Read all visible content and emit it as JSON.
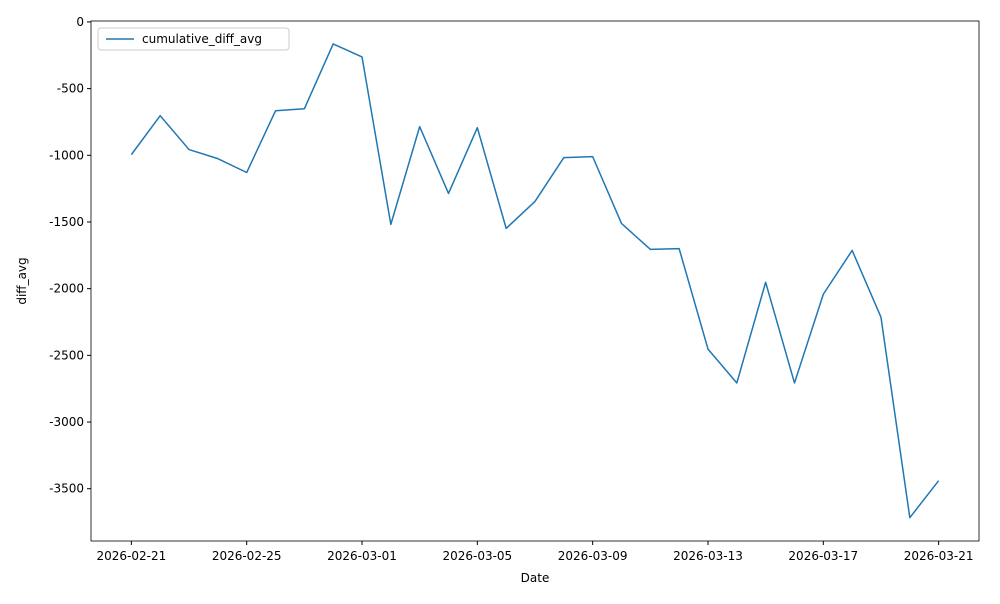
{
  "chart_data": {
    "type": "line",
    "xlabel": "Date",
    "ylabel": "diff_avg",
    "x": [
      "2026-02-21",
      "2026-02-22",
      "2026-02-23",
      "2026-02-24",
      "2026-02-25",
      "2026-02-26",
      "2026-02-27",
      "2026-02-28",
      "2026-03-01",
      "2026-03-02",
      "2026-03-03",
      "2026-03-04",
      "2026-03-05",
      "2026-03-06",
      "2026-03-07",
      "2026-03-08",
      "2026-03-09",
      "2026-03-10",
      "2026-03-11",
      "2026-03-12",
      "2026-03-13",
      "2026-03-14",
      "2026-03-15",
      "2026-03-16",
      "2026-03-17",
      "2026-03-18",
      "2026-03-19",
      "2026-03-20",
      "2026-03-21"
    ],
    "series": [
      {
        "name": "cumulative_diff_avg",
        "color": "#1f77b4",
        "values": [
          -995,
          -703,
          -957,
          -1025,
          -1129,
          -666,
          -651,
          -165,
          -262,
          -1518,
          -785,
          -1286,
          -793,
          -1548,
          -1346,
          -1017,
          -1010,
          -1511,
          -1705,
          -1700,
          -2453,
          -2707,
          -1952,
          -2707,
          -2042,
          -1713,
          -2214,
          -3717,
          -3440
        ]
      }
    ],
    "xlim": [
      "2026-02-19T14:24",
      "2026-03-22T09:36"
    ],
    "xticks": [
      "2026-02-21",
      "2026-02-25",
      "2026-03-01",
      "2026-03-05",
      "2026-03-09",
      "2026-03-13",
      "2026-03-17",
      "2026-03-21"
    ],
    "ylim": [
      -3892,
      7
    ],
    "yticks": [
      0,
      -500,
      -1000,
      -1500,
      -2000,
      -2500,
      -3000,
      -3500
    ],
    "legend": "upper left",
    "grid": false
  }
}
